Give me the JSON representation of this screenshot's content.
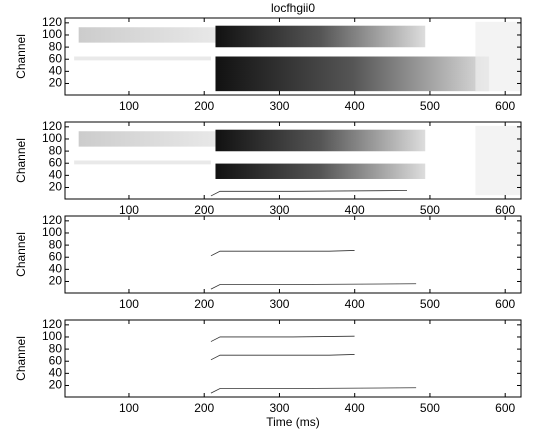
{
  "chart_data": [
    {
      "type": "image",
      "title": "locfhgii0",
      "y_label": "Channel",
      "xlim": [
        15,
        621
      ],
      "ylim": [
        1,
        128
      ],
      "xticks": [
        100,
        200,
        300,
        400,
        500,
        600
      ],
      "yticks": [
        20,
        40,
        60,
        80,
        100,
        120
      ]
    },
    {
      "type": "image",
      "y_label": "Channel",
      "xlim": [
        15,
        621
      ],
      "ylim": [
        1,
        128
      ],
      "xticks": [
        100,
        200,
        300,
        400,
        500,
        600
      ],
      "yticks": [
        20,
        40,
        60,
        80,
        100,
        120
      ]
    },
    {
      "type": "image",
      "y_label": "Channel",
      "xlim": [
        15,
        621
      ],
      "ylim": [
        1,
        128
      ],
      "xticks": [
        100,
        200,
        300,
        400,
        500,
        600
      ],
      "yticks": [
        20,
        40,
        60,
        80,
        100,
        120
      ]
    },
    {
      "type": "image",
      "y_label": "Channel",
      "x_label": "Time (ms)",
      "xlim": [
        15,
        621
      ],
      "ylim": [
        1,
        128
      ],
      "xticks": [
        100,
        200,
        300,
        400,
        500,
        600
      ],
      "yticks": [
        20,
        40,
        60,
        80,
        100,
        120
      ]
    }
  ]
}
